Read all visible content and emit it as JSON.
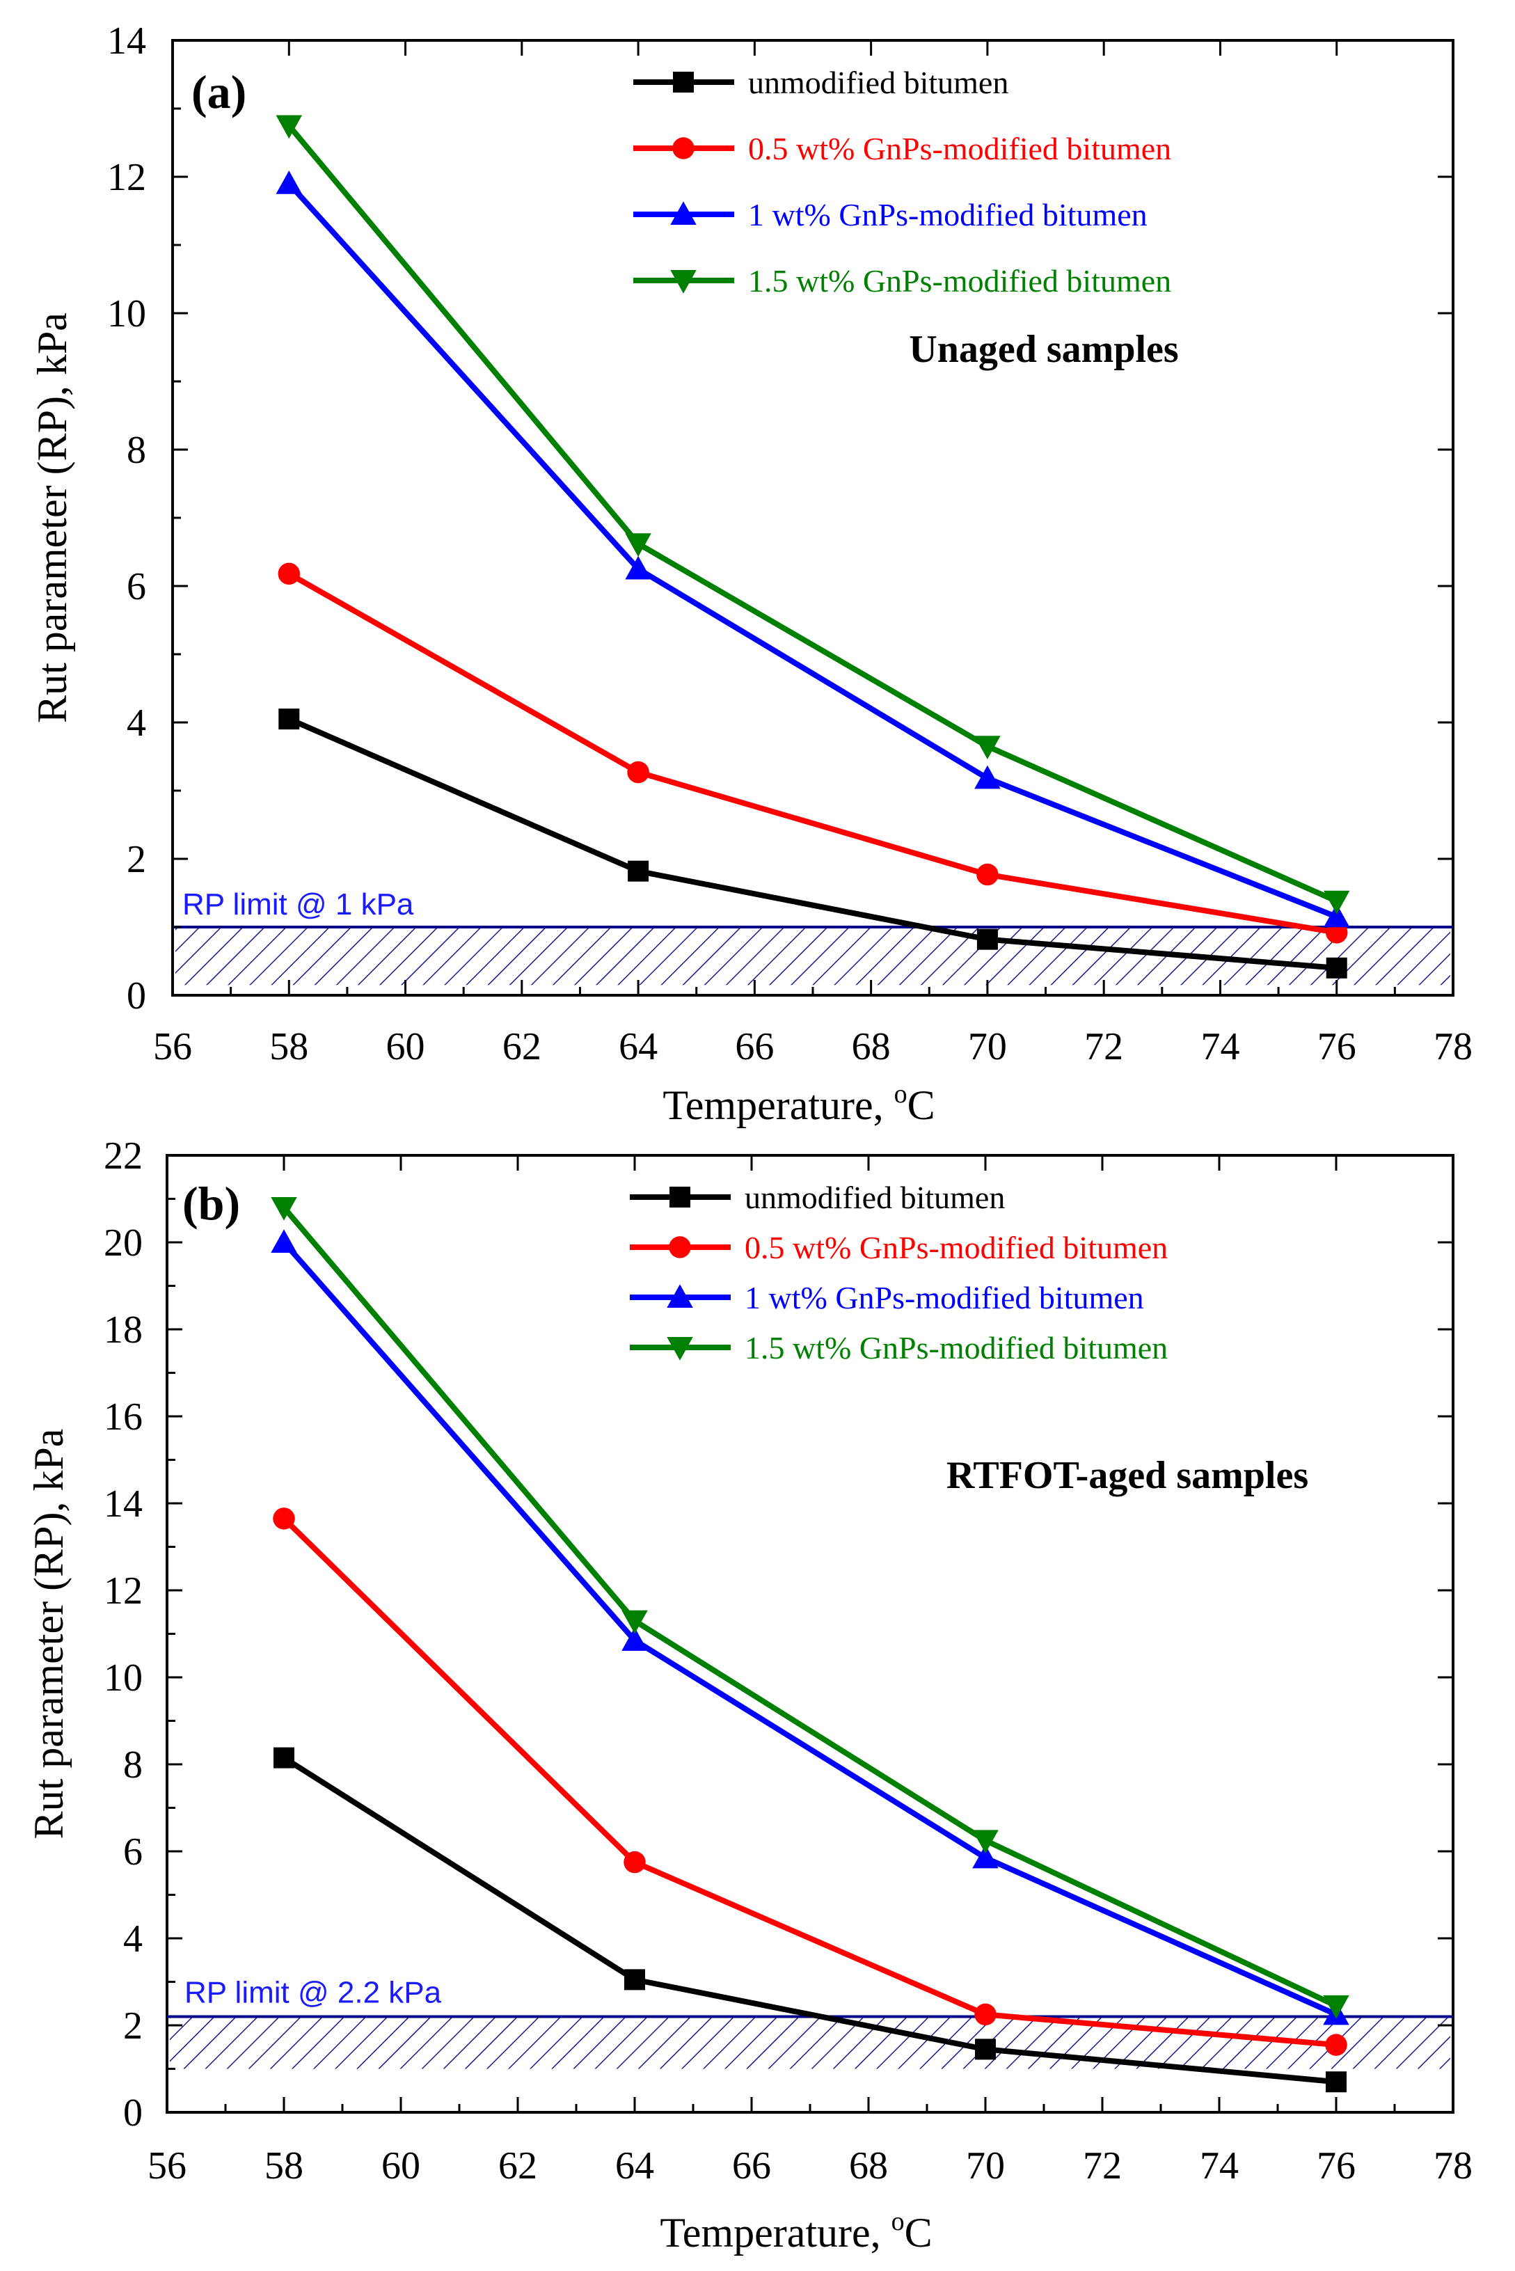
{
  "figure": {
    "colors": {
      "unmodified": "#000000",
      "gnp05": "#ff0000",
      "gnp1": "#0000ff",
      "gnp15": "#008000",
      "limit": "#00008b",
      "hatch": "#1a1a8c"
    }
  },
  "chart_data": [
    {
      "type": "line",
      "panel_label": "(a)",
      "annotation": "Unaged samples",
      "xlabel": "Temperature, ",
      "xlabel_super": "o",
      "xlabel_unit": "C",
      "ylabel": "Rut parameter (RP), kPa",
      "xlim": [
        56,
        78
      ],
      "ylim": [
        0,
        14
      ],
      "xticks": [
        "56",
        "58",
        "60",
        "62",
        "64",
        "66",
        "68",
        "70",
        "72",
        "74",
        "76",
        "78"
      ],
      "yticks": [
        "0",
        "2",
        "4",
        "6",
        "8",
        "10",
        "12",
        "14"
      ],
      "x": [
        58,
        64,
        70,
        76
      ],
      "limit": {
        "value": 1,
        "label": "RP limit @ 1 kPa",
        "hatch_bottom": 0.15
      },
      "series": [
        {
          "name": "unmodified bitumen",
          "marker": "square",
          "color_key": "unmodified",
          "values": [
            4.05,
            1.82,
            0.82,
            0.4
          ]
        },
        {
          "name": "0.5 wt% GnPs-modified bitumen",
          "marker": "circle",
          "color_key": "gnp05",
          "values": [
            6.18,
            3.27,
            1.77,
            0.92
          ]
        },
        {
          "name": "1 wt% GnPs-modified bitumen",
          "marker": "triangle-up",
          "color_key": "gnp1",
          "values": [
            11.9,
            6.25,
            3.18,
            1.15
          ]
        },
        {
          "name": "1.5 wt% GnPs-modified bitumen",
          "marker": "triangle-down",
          "color_key": "gnp15",
          "values": [
            12.75,
            6.62,
            3.65,
            1.38
          ]
        }
      ]
    },
    {
      "type": "line",
      "panel_label": "(b)",
      "annotation": "RTFOT-aged samples",
      "xlabel": "Temperature, ",
      "xlabel_super": "o",
      "xlabel_unit": "C",
      "ylabel": "Rut parameter (RP), kPa",
      "xlim": [
        56,
        78
      ],
      "ylim": [
        0,
        22
      ],
      "xticks": [
        "56",
        "58",
        "60",
        "62",
        "64",
        "66",
        "68",
        "70",
        "72",
        "74",
        "76",
        "78"
      ],
      "yticks": [
        "0",
        "2",
        "4",
        "6",
        "8",
        "10",
        "12",
        "14",
        "16",
        "18",
        "20",
        "22"
      ],
      "x": [
        58,
        64,
        70,
        76
      ],
      "limit": {
        "value": 2.2,
        "label": "RP limit @ 2.2 kPa",
        "hatch_bottom": 1.0
      },
      "series": [
        {
          "name": "unmodified bitumen",
          "marker": "square",
          "color_key": "unmodified",
          "values": [
            8.15,
            3.05,
            1.45,
            0.7
          ]
        },
        {
          "name": "0.5 wt% GnPs-modified bitumen",
          "marker": "circle",
          "color_key": "gnp05",
          "values": [
            13.65,
            5.75,
            2.25,
            1.55
          ]
        },
        {
          "name": "1 wt% GnPs-modified bitumen",
          "marker": "triangle-up",
          "color_key": "gnp1",
          "values": [
            20.0,
            10.85,
            5.85,
            2.25
          ]
        },
        {
          "name": "1.5 wt% GnPs-modified bitumen",
          "marker": "triangle-down",
          "color_key": "gnp15",
          "values": [
            20.8,
            11.3,
            6.25,
            2.45
          ]
        }
      ]
    }
  ]
}
